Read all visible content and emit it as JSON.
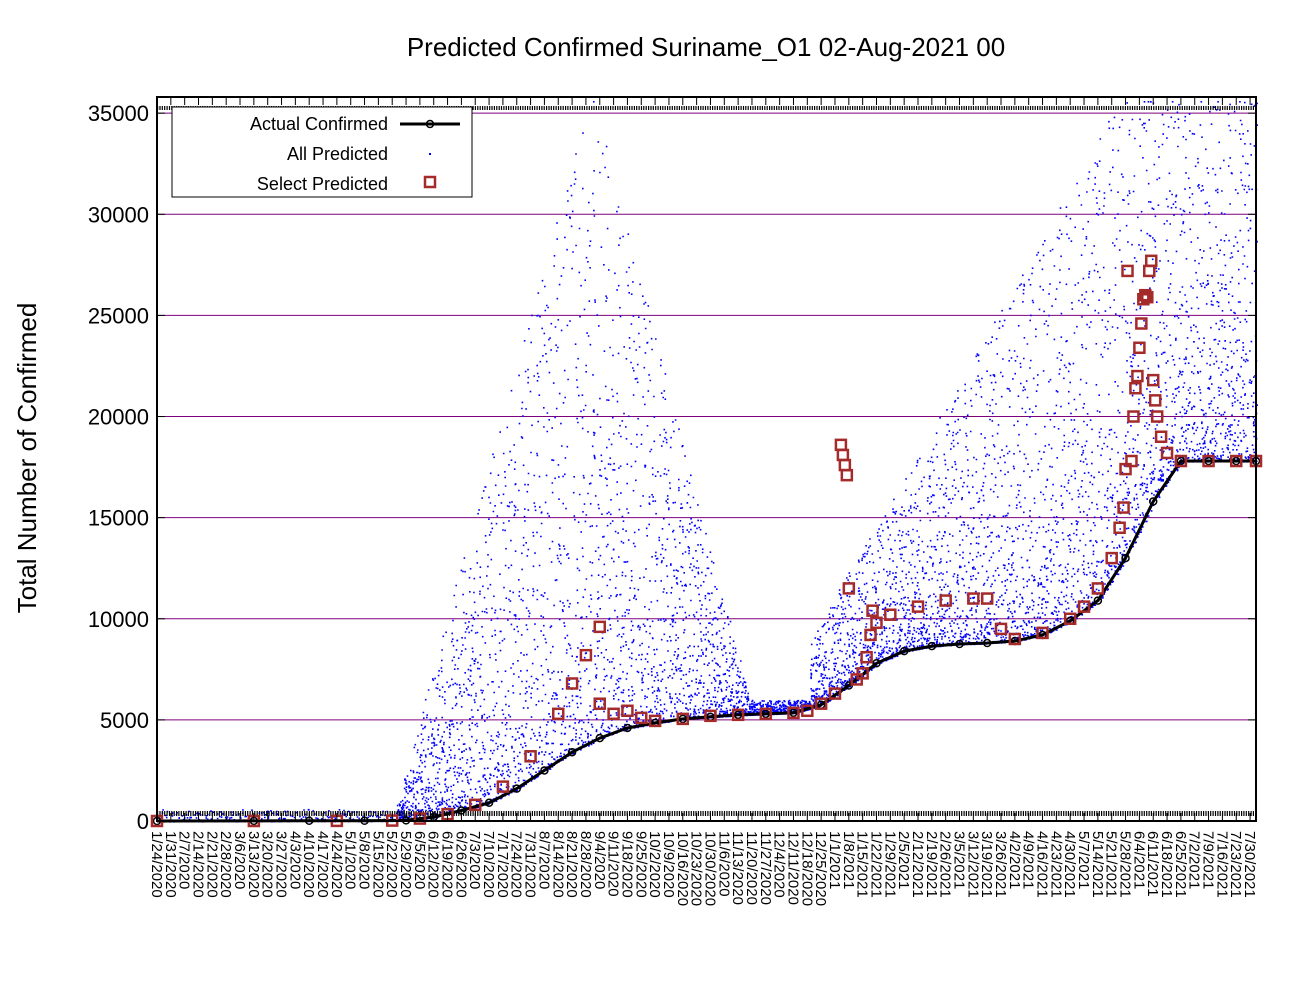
{
  "chart_data": {
    "type": "scatter",
    "title": "Predicted Confirmed Suriname_O1 02-Aug-2021 00",
    "xlabel": "",
    "ylabel": "Total Number of Confirmed",
    "ylim": [
      0,
      35800
    ],
    "yticks": [
      0,
      5000,
      10000,
      15000,
      20000,
      25000,
      30000,
      35000
    ],
    "grid": "horizontal",
    "legend_position": "top-left",
    "x_tick_labels": [
      "1/24/2020",
      "1/31/2020",
      "2/7/2020",
      "2/14/2020",
      "2/21/2020",
      "2/28/2020",
      "3/6/2020",
      "3/13/2020",
      "3/20/2020",
      "3/27/2020",
      "4/3/2020",
      "4/10/2020",
      "4/17/2020",
      "4/24/2020",
      "5/1/2020",
      "5/8/2020",
      "5/15/2020",
      "5/22/2020",
      "5/29/2020",
      "6/5/2020",
      "6/12/2020",
      "6/19/2020",
      "6/26/2020",
      "7/3/2020",
      "7/10/2020",
      "7/17/2020",
      "7/24/2020",
      "7/31/2020",
      "8/7/2020",
      "8/14/2020",
      "8/21/2020",
      "8/28/2020",
      "9/4/2020",
      "9/11/2020",
      "9/18/2020",
      "9/25/2020",
      "10/2/2020",
      "10/9/2020",
      "10/16/2020",
      "10/23/2020",
      "10/30/2020",
      "11/6/2020",
      "11/13/2020",
      "11/20/2020",
      "11/27/2020",
      "12/4/2020",
      "12/11/2020",
      "12/18/2020",
      "12/25/2020",
      "1/1/2021",
      "1/8/2021",
      "1/15/2021",
      "1/22/2021",
      "1/29/2021",
      "2/5/2021",
      "2/12/2021",
      "2/19/2021",
      "2/26/2021",
      "3/5/2021",
      "3/12/2021",
      "3/19/2021",
      "3/26/2021",
      "4/2/2021",
      "4/9/2021",
      "4/16/2021",
      "4/23/2021",
      "4/30/2021",
      "5/7/2021",
      "5/14/2021",
      "5/21/2021",
      "5/28/2021",
      "6/4/2021",
      "6/11/2021",
      "6/18/2021",
      "6/25/2021",
      "7/2/2021",
      "7/9/2021",
      "7/16/2021",
      "7/23/2021",
      "7/30/2021"
    ],
    "series": [
      {
        "name": "Actual Confirmed",
        "style": "line+points",
        "color": "#000000",
        "points": [
          [
            "1/24/2020",
            0
          ],
          [
            "3/13/2020",
            5
          ],
          [
            "4/10/2020",
            10
          ],
          [
            "5/8/2020",
            11
          ],
          [
            "5/29/2020",
            30
          ],
          [
            "6/12/2020",
            200
          ],
          [
            "6/26/2020",
            520
          ],
          [
            "7/10/2020",
            900
          ],
          [
            "7/24/2020",
            1600
          ],
          [
            "8/7/2020",
            2500
          ],
          [
            "8/21/2020",
            3400
          ],
          [
            "9/4/2020",
            4100
          ],
          [
            "9/18/2020",
            4600
          ],
          [
            "10/2/2020",
            4850
          ],
          [
            "10/16/2020",
            5050
          ],
          [
            "10/30/2020",
            5150
          ],
          [
            "11/13/2020",
            5250
          ],
          [
            "11/27/2020",
            5300
          ],
          [
            "12/11/2020",
            5350
          ],
          [
            "12/25/2020",
            5750
          ],
          [
            "1/8/2021",
            6700
          ],
          [
            "1/22/2021",
            7800
          ],
          [
            "2/5/2021",
            8400
          ],
          [
            "2/19/2021",
            8650
          ],
          [
            "3/5/2021",
            8750
          ],
          [
            "3/19/2021",
            8800
          ],
          [
            "4/2/2021",
            8900
          ],
          [
            "4/16/2021",
            9200
          ],
          [
            "4/30/2021",
            9900
          ],
          [
            "5/14/2021",
            10900
          ],
          [
            "5/28/2021",
            13000
          ],
          [
            "6/11/2021",
            15800
          ],
          [
            "6/25/2021",
            17800
          ],
          [
            "7/9/2021",
            17800
          ],
          [
            "7/23/2021",
            17800
          ],
          [
            "8/2/2021",
            17800
          ]
        ]
      },
      {
        "name": "All Predicted",
        "style": "dots",
        "color": "#0000ff"
      },
      {
        "name": "Select Predicted",
        "style": "squares",
        "color": "#a52a2a",
        "points": [
          [
            "1/24/2020",
            0
          ],
          [
            "3/13/2020",
            0
          ],
          [
            "4/24/2020",
            5
          ],
          [
            "5/22/2020",
            20
          ],
          [
            "6/5/2020",
            120
          ],
          [
            "6/19/2020",
            340
          ],
          [
            "7/3/2020",
            800
          ],
          [
            "7/17/2020",
            1700
          ],
          [
            "7/31/2020",
            3200
          ],
          [
            "8/14/2020",
            5300
          ],
          [
            "8/21/2020",
            6800
          ],
          [
            "8/28/2020",
            8200
          ],
          [
            "9/4/2020",
            9600
          ],
          [
            "9/4/2020",
            5800
          ],
          [
            "9/11/2020",
            5300
          ],
          [
            "9/18/2020",
            5450
          ],
          [
            "9/25/2020",
            5100
          ],
          [
            "10/2/2020",
            4950
          ],
          [
            "10/16/2020",
            5050
          ],
          [
            "10/30/2020",
            5200
          ],
          [
            "11/13/2020",
            5250
          ],
          [
            "11/27/2020",
            5300
          ],
          [
            "12/11/2020",
            5350
          ],
          [
            "12/18/2020",
            5450
          ],
          [
            "12/25/2020",
            5800
          ],
          [
            "1/1/2021",
            6300
          ],
          [
            "1/4/2021",
            18600
          ],
          [
            "1/5/2021",
            18100
          ],
          [
            "1/6/2021",
            17600
          ],
          [
            "1/7/2021",
            17100
          ],
          [
            "1/8/2021",
            11500
          ],
          [
            "1/12/2021",
            7000
          ],
          [
            "1/15/2021",
            7300
          ],
          [
            "1/17/2021",
            8100
          ],
          [
            "1/19/2021",
            9200
          ],
          [
            "1/20/2021",
            10400
          ],
          [
            "1/22/2021",
            9800
          ],
          [
            "1/29/2021",
            10200
          ],
          [
            "2/12/2021",
            10600
          ],
          [
            "2/26/2021",
            10900
          ],
          [
            "3/12/2021",
            11000
          ],
          [
            "3/19/2021",
            11000
          ],
          [
            "3/26/2021",
            9500
          ],
          [
            "4/2/2021",
            9000
          ],
          [
            "4/16/2021",
            9300
          ],
          [
            "4/30/2021",
            10000
          ],
          [
            "5/7/2021",
            10600
          ],
          [
            "5/14/2021",
            11500
          ],
          [
            "5/21/2021",
            13000
          ],
          [
            "5/25/2021",
            14500
          ],
          [
            "5/27/2021",
            15500
          ],
          [
            "5/28/2021",
            17400
          ],
          [
            "5/29/2021",
            27200
          ],
          [
            "5/31/2021",
            17800
          ],
          [
            "6/1/2021",
            20000
          ],
          [
            "6/2/2021",
            21400
          ],
          [
            "6/3/2021",
            22000
          ],
          [
            "6/4/2021",
            23400
          ],
          [
            "6/5/2021",
            24600
          ],
          [
            "6/6/2021",
            25800
          ],
          [
            "6/7/2021",
            26000
          ],
          [
            "6/8/2021",
            25900
          ],
          [
            "6/9/2021",
            27200
          ],
          [
            "6/10/2021",
            27700
          ],
          [
            "6/11/2021",
            21800
          ],
          [
            "6/12/2021",
            20800
          ],
          [
            "6/13/2021",
            20000
          ],
          [
            "6/15/2021",
            19000
          ],
          [
            "6/18/2021",
            18200
          ],
          [
            "6/25/2021",
            17800
          ],
          [
            "7/9/2021",
            17800
          ],
          [
            "7/23/2021",
            17800
          ],
          [
            "8/2/2021",
            17800
          ]
        ]
      }
    ],
    "colors": {
      "grid": "#7f007f",
      "axis": "#000000"
    }
  }
}
